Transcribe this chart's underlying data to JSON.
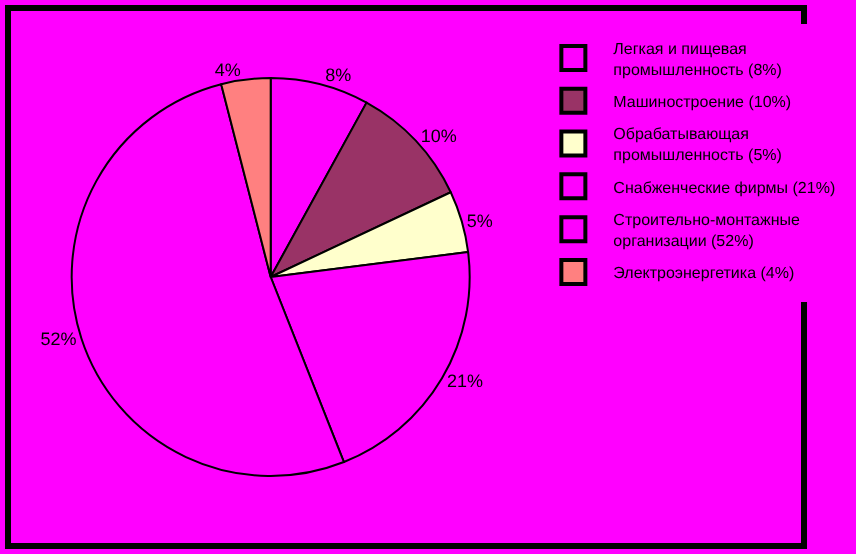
{
  "chart_data": {
    "type": "pie",
    "categories": [
      "Легкая и пищевая промышленность (8%)",
      "Машиностроение (10%)",
      "Обрабатывающая промышленность (5%)",
      "Снабженческие фирмы (21%)",
      "Строительно-монтажные организации (52%)",
      "Электроэнергетика (4%)"
    ],
    "values": [
      8,
      10,
      5,
      21,
      52,
      4
    ],
    "value_labels": [
      "8%",
      "10%",
      "5%",
      "21%",
      "52%",
      "4%"
    ],
    "colors": [
      "#ff00ff",
      "#993366",
      "#ffffcc",
      "#ff00ff",
      "#ff00ff",
      "#ff8080"
    ],
    "legend": "right"
  }
}
